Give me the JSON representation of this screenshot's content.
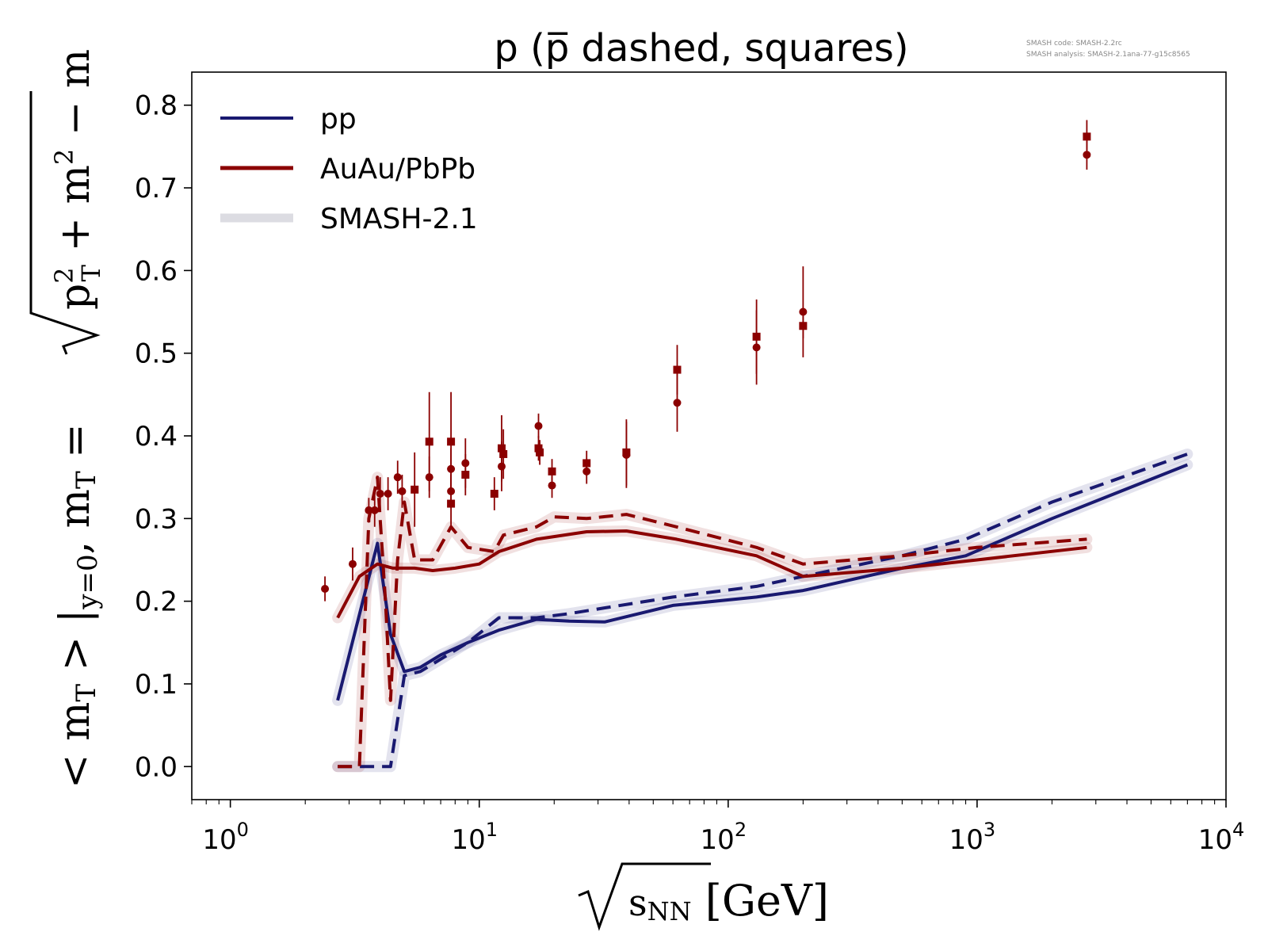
{
  "chart_data": {
    "type": "line",
    "title": "p (p̅ dashed, squares)",
    "xlabel": "√sNN [GeV]",
    "ylabel": "<mT>|y=0, mT = √(pT² + m²) − m",
    "xscale": "log",
    "xlim": [
      0.7,
      10000
    ],
    "ylim": [
      -0.04,
      0.84
    ],
    "x_ticks": [
      {
        "value": 1,
        "base": "10",
        "exp": "0"
      },
      {
        "value": 10,
        "base": "10",
        "exp": "1"
      },
      {
        "value": 100,
        "base": "10",
        "exp": "2"
      },
      {
        "value": 1000,
        "base": "10",
        "exp": "3"
      },
      {
        "value": 10000,
        "base": "10",
        "exp": "4"
      }
    ],
    "y_ticks": [
      "0.0",
      "0.1",
      "0.2",
      "0.3",
      "0.4",
      "0.5",
      "0.6",
      "0.7",
      "0.8"
    ],
    "legend": {
      "position": "upper left",
      "entries": [
        {
          "label": "pp",
          "color": "#191970",
          "style": "solid"
        },
        {
          "label": "AuAu/PbPb",
          "color": "#8b0000",
          "style": "solid"
        },
        {
          "label": "SMASH-2.1",
          "color": "#d9d9df",
          "style": "band"
        }
      ]
    },
    "meta_text": [
      "SMASH code:      SMASH-2.2rc",
      "SMASH analysis:  SMASH-2.1ana-77-g15c8565"
    ],
    "series": [
      {
        "name": "pp",
        "color": "#191970",
        "dash": "solid",
        "x": [
          2.7,
          3.9,
          4.4,
          5.0,
          5.8,
          7.0,
          9.0,
          12.0,
          17.0,
          23.0,
          32.0,
          60.0,
          130.0,
          200.0,
          500.0,
          900.0,
          2000.0,
          7000.0
        ],
        "y": [
          0.08,
          0.27,
          0.16,
          0.115,
          0.12,
          0.135,
          0.15,
          0.165,
          0.178,
          0.176,
          0.175,
          0.195,
          0.205,
          0.213,
          0.24,
          0.255,
          0.3,
          0.365
        ]
      },
      {
        "name": "pbar pp",
        "color": "#191970",
        "dash": "dashed",
        "x": [
          2.7,
          3.9,
          4.4,
          5.0,
          5.8,
          7.0,
          9.0,
          12.0,
          17.0,
          23.0,
          32.0,
          60.0,
          130.0,
          200.0,
          500.0,
          900.0,
          2000.0,
          7000.0
        ],
        "y": [
          0.0,
          0.0,
          0.0,
          0.11,
          0.115,
          0.13,
          0.15,
          0.18,
          0.18,
          0.185,
          0.192,
          0.205,
          0.218,
          0.23,
          0.255,
          0.275,
          0.32,
          0.378
        ]
      },
      {
        "name": "AuAu/PbPb",
        "color": "#8b0000",
        "dash": "solid",
        "x": [
          2.7,
          3.3,
          3.9,
          4.5,
          5.5,
          6.5,
          8.0,
          10.0,
          12.0,
          17.0,
          27.0,
          39.0,
          62.0,
          130.0,
          200.0,
          500.0,
          1000.0,
          2760.0
        ],
        "y": [
          0.18,
          0.23,
          0.245,
          0.24,
          0.24,
          0.237,
          0.24,
          0.245,
          0.26,
          0.275,
          0.284,
          0.285,
          0.275,
          0.255,
          0.23,
          0.24,
          0.25,
          0.265
        ]
      },
      {
        "name": "pbar AuAu/PbPb",
        "color": "#8b0000",
        "dash": "dashed",
        "x": [
          2.7,
          3.3,
          3.6,
          3.9,
          4.2,
          4.4,
          4.7,
          5.0,
          5.5,
          6.5,
          7.7,
          9.0,
          11.5,
          12.5,
          17.0,
          20.0,
          27.0,
          39.0,
          62.0,
          130.0,
          200.0,
          500.0,
          1000.0,
          2760.0
        ],
        "y": [
          0.0,
          0.0,
          0.3,
          0.35,
          0.2,
          0.08,
          0.25,
          0.32,
          0.25,
          0.25,
          0.29,
          0.265,
          0.26,
          0.28,
          0.29,
          0.302,
          0.3,
          0.305,
          0.29,
          0.265,
          0.245,
          0.255,
          0.265,
          0.275
        ]
      }
    ],
    "data_points": {
      "color": "#8b0000",
      "circles": [
        {
          "x": 2.4,
          "y": 0.215,
          "err": 0.015
        },
        {
          "x": 3.1,
          "y": 0.245,
          "err": 0.02
        },
        {
          "x": 3.6,
          "y": 0.31,
          "err": 0.015
        },
        {
          "x": 3.8,
          "y": 0.31,
          "err": 0.02
        },
        {
          "x": 4.0,
          "y": 0.33,
          "err": 0.02
        },
        {
          "x": 4.3,
          "y": 0.33,
          "err": 0.02
        },
        {
          "x": 4.7,
          "y": 0.35,
          "err": 0.02
        },
        {
          "x": 4.9,
          "y": 0.333,
          "err": 0.02
        },
        {
          "x": 6.3,
          "y": 0.35,
          "err": 0.025
        },
        {
          "x": 7.7,
          "y": 0.36,
          "err": 0.025
        },
        {
          "x": 7.7,
          "y": 0.333,
          "err": 0.02
        },
        {
          "x": 8.8,
          "y": 0.367,
          "err": 0.03
        },
        {
          "x": 12.3,
          "y": 0.363,
          "err": 0.03
        },
        {
          "x": 17.3,
          "y": 0.412,
          "err": 0.015
        },
        {
          "x": 19.6,
          "y": 0.34,
          "err": 0.015
        },
        {
          "x": 27.0,
          "y": 0.357,
          "err": 0.015
        },
        {
          "x": 39.0,
          "y": 0.377,
          "err": 0.04
        },
        {
          "x": 62.4,
          "y": 0.44,
          "err": 0.035
        },
        {
          "x": 130.0,
          "y": 0.507,
          "err": 0.045
        },
        {
          "x": 200.0,
          "y": 0.55,
          "err": 0.055
        },
        {
          "x": 2760.0,
          "y": 0.74,
          "err": 0.018
        }
      ],
      "squares": [
        {
          "x": 5.5,
          "y": 0.335,
          "err": 0.045
        },
        {
          "x": 6.3,
          "y": 0.393,
          "err": 0.06
        },
        {
          "x": 7.7,
          "y": 0.393,
          "err": 0.06
        },
        {
          "x": 7.7,
          "y": 0.318,
          "err": 0.03
        },
        {
          "x": 8.8,
          "y": 0.353,
          "err": 0.025
        },
        {
          "x": 11.5,
          "y": 0.33,
          "err": 0.02
        },
        {
          "x": 12.3,
          "y": 0.385,
          "err": 0.04
        },
        {
          "x": 12.5,
          "y": 0.378,
          "err": 0.03
        },
        {
          "x": 17.3,
          "y": 0.385,
          "err": 0.015
        },
        {
          "x": 17.5,
          "y": 0.38,
          "err": 0.015
        },
        {
          "x": 19.6,
          "y": 0.357,
          "err": 0.015
        },
        {
          "x": 27.0,
          "y": 0.367,
          "err": 0.015
        },
        {
          "x": 39.0,
          "y": 0.38,
          "err": 0.04
        },
        {
          "x": 62.4,
          "y": 0.48,
          "err": 0.03
        },
        {
          "x": 130.0,
          "y": 0.52,
          "err": 0.045
        },
        {
          "x": 200.0,
          "y": 0.533,
          "err": 0.015
        },
        {
          "x": 2760.0,
          "y": 0.762,
          "err": 0.02
        }
      ]
    }
  }
}
